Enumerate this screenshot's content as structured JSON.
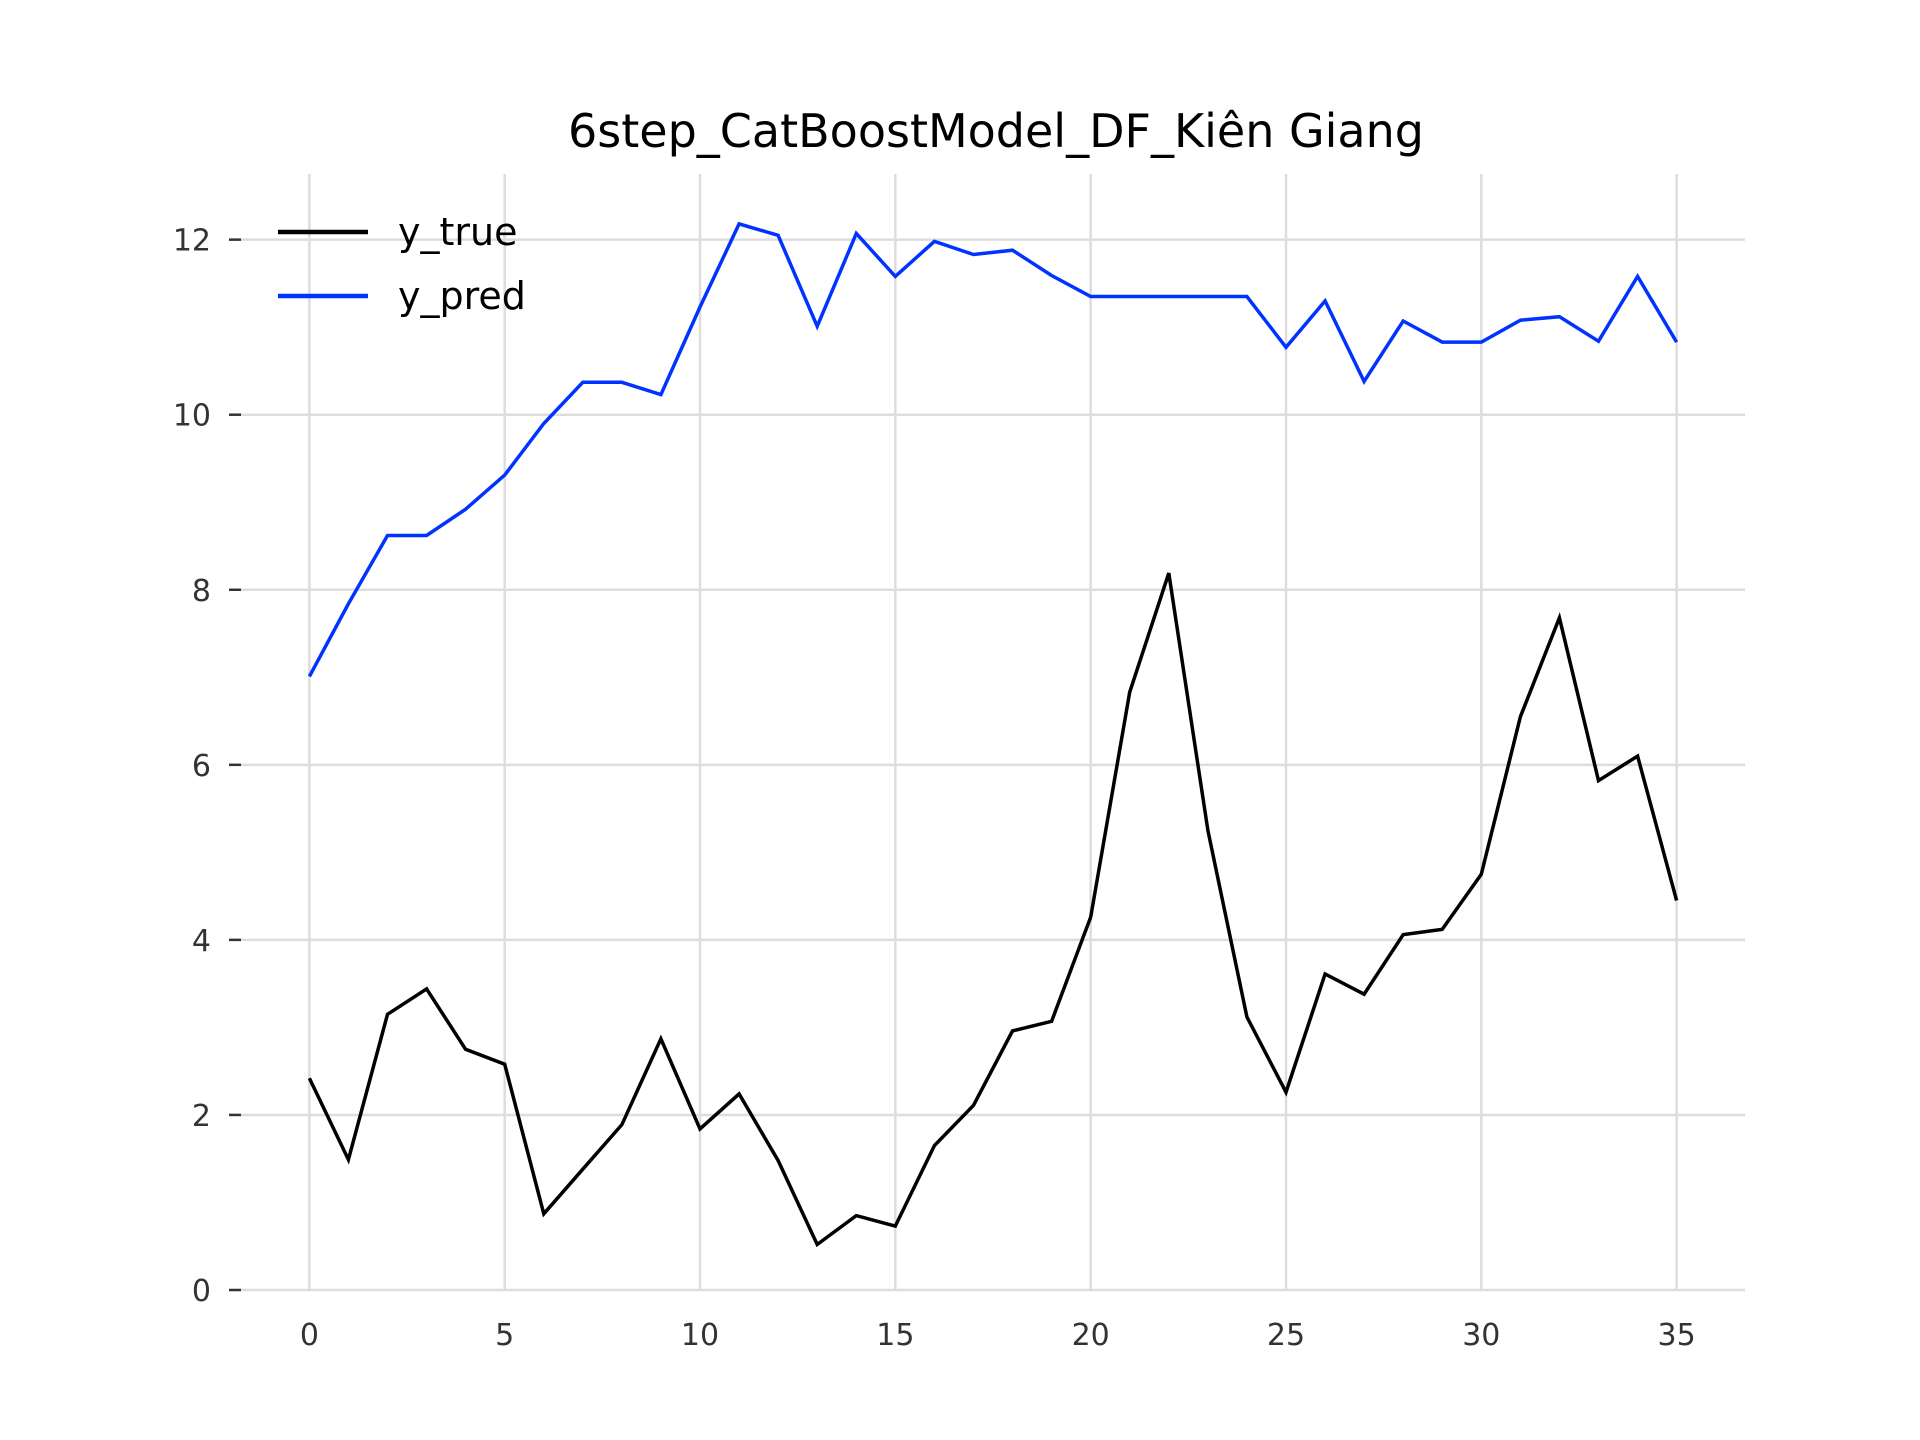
{
  "chart_data": {
    "type": "line",
    "title": "6step_CatBoostModel_DF_Kiên Giang",
    "xlabel": "",
    "ylabel": "",
    "xlim": [
      -1.75,
      36.75
    ],
    "ylim": [
      0,
      12.75
    ],
    "x_ticks": [
      0,
      5,
      10,
      15,
      20,
      25,
      30,
      35
    ],
    "y_ticks": [
      0,
      2,
      4,
      6,
      8,
      10,
      12
    ],
    "grid": true,
    "legend_position": "top-left",
    "x": [
      0,
      1,
      2,
      3,
      4,
      5,
      6,
      7,
      8,
      9,
      10,
      11,
      12,
      13,
      14,
      15,
      16,
      17,
      18,
      19,
      20,
      21,
      22,
      23,
      24,
      25,
      26,
      27,
      28,
      29,
      30,
      31,
      32,
      33,
      34,
      35
    ],
    "series": [
      {
        "name": "y_true",
        "color": "#000000",
        "values": [
          2.42,
          1.49,
          3.15,
          3.44,
          2.75,
          2.58,
          0.87,
          1.38,
          1.89,
          2.87,
          1.84,
          2.24,
          1.48,
          0.52,
          0.85,
          0.73,
          1.65,
          2.11,
          2.96,
          3.07,
          4.26,
          6.83,
          8.19,
          5.25,
          3.12,
          2.26,
          3.61,
          3.38,
          4.06,
          4.12,
          4.75,
          6.55,
          7.68,
          5.82,
          6.1,
          4.45
        ]
      },
      {
        "name": "y_pred",
        "color": "#0033ff",
        "values": [
          7.01,
          7.84,
          8.62,
          8.62,
          8.92,
          9.31,
          9.9,
          10.37,
          10.37,
          10.23,
          11.23,
          12.18,
          12.05,
          11.01,
          12.07,
          11.58,
          11.98,
          11.83,
          11.88,
          11.59,
          11.35,
          11.35,
          11.35,
          11.35,
          11.35,
          10.77,
          11.3,
          10.38,
          11.07,
          10.83,
          10.83,
          11.08,
          11.12,
          10.84,
          11.58,
          10.83
        ]
      }
    ]
  }
}
